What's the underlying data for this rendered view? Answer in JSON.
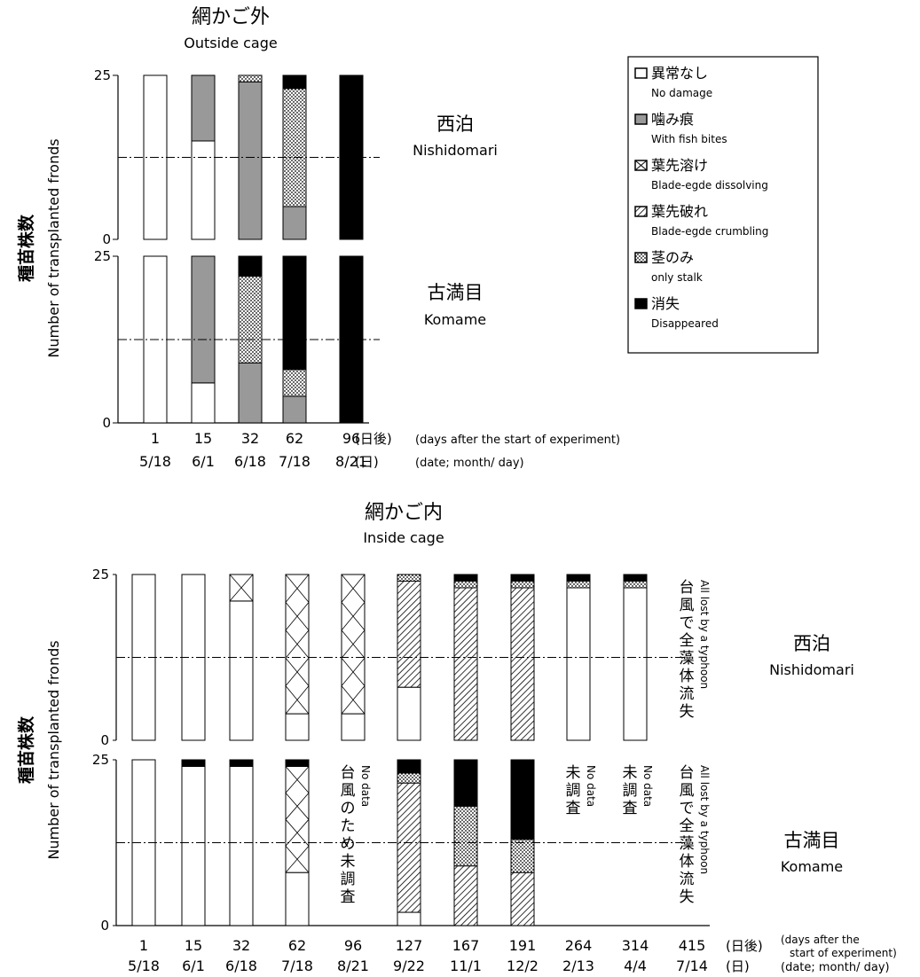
{
  "top_title": {
    "ja": "網かご外",
    "en": "Outside cage"
  },
  "bottom_title": {
    "ja": "網かご内",
    "en": "Inside cage"
  },
  "ylabel": {
    "ja": "種苗株数",
    "en": "Number of transplanted fronds"
  },
  "legend": [
    {
      "key": "no_damage",
      "ja": "異常なし",
      "en": "No damage"
    },
    {
      "key": "fish_bites",
      "ja": "噛み痕",
      "en": "With fish bites"
    },
    {
      "key": "dissolving",
      "ja": "葉先溶け",
      "en": "Blade-egde dissolving"
    },
    {
      "key": "crumbling",
      "ja": "葉先破れ",
      "en": "Blade-egde crumbling"
    },
    {
      "key": "only_stalk",
      "ja": "茎のみ",
      "en": "only stalk"
    },
    {
      "key": "disappeared",
      "ja": "消失",
      "en": "Disappeared"
    }
  ],
  "axis_suffix": {
    "days_ja": "(日後)",
    "date_ja": "(日)",
    "days_en": "(days after the start of experiment)",
    "days_en_l1": "(days after the",
    "days_en_l2": "start of experiment)",
    "date_en": "(date; month/ day)"
  },
  "chart_data": [
    {
      "type": "bar",
      "stacked": true,
      "title": "網かご外 Outside cage",
      "days": [
        "1",
        "15",
        "32",
        "62",
        "96"
      ],
      "dates": [
        "5/18",
        "6/1",
        "6/18",
        "7/18",
        "8/21"
      ],
      "ylim": [
        0,
        25
      ],
      "yticks": [
        0,
        25
      ],
      "reference_line": 12.5,
      "panels": [
        {
          "site_ja": "西泊",
          "site_en": "Nishidomari",
          "stacks": [
            [
              {
                "cat": "no_damage",
                "value": 25
              }
            ],
            [
              {
                "cat": "no_damage",
                "value": 15
              },
              {
                "cat": "fish_bites",
                "value": 10
              }
            ],
            [
              {
                "cat": "fish_bites",
                "value": 24
              },
              {
                "cat": "only_stalk",
                "value": 1
              }
            ],
            [
              {
                "cat": "fish_bites",
                "value": 5
              },
              {
                "cat": "only_stalk",
                "value": 18
              },
              {
                "cat": "disappeared",
                "value": 2
              }
            ],
            [
              {
                "cat": "disappeared",
                "value": 25
              }
            ]
          ]
        },
        {
          "site_ja": "古満目",
          "site_en": "Komame",
          "stacks": [
            [
              {
                "cat": "no_damage",
                "value": 25
              }
            ],
            [
              {
                "cat": "no_damage",
                "value": 6
              },
              {
                "cat": "fish_bites",
                "value": 19
              }
            ],
            [
              {
                "cat": "fish_bites",
                "value": 9
              },
              {
                "cat": "only_stalk",
                "value": 13
              },
              {
                "cat": "disappeared",
                "value": 3
              }
            ],
            [
              {
                "cat": "fish_bites",
                "value": 4
              },
              {
                "cat": "only_stalk",
                "value": 4
              },
              {
                "cat": "disappeared",
                "value": 17
              }
            ],
            [
              {
                "cat": "disappeared",
                "value": 25
              }
            ]
          ]
        }
      ]
    },
    {
      "type": "bar",
      "stacked": true,
      "title": "網かご内 Inside cage",
      "days": [
        "1",
        "15",
        "32",
        "62",
        "96",
        "127",
        "167",
        "191",
        "264",
        "314",
        "415"
      ],
      "dates": [
        "5/18",
        "6/1",
        "6/18",
        "7/18",
        "8/21",
        "9/22",
        "11/1",
        "12/2",
        "2/13",
        "4/4",
        "7/14"
      ],
      "ylim": [
        0,
        25
      ],
      "yticks": [
        0,
        25
      ],
      "reference_line": 12.5,
      "panels": [
        {
          "site_ja": "西泊",
          "site_en": "Nishidomari",
          "stacks": [
            [
              {
                "cat": "no_damage",
                "value": 25
              }
            ],
            [
              {
                "cat": "no_damage",
                "value": 25
              }
            ],
            [
              {
                "cat": "no_damage",
                "value": 21
              },
              {
                "cat": "dissolving",
                "value": 4
              }
            ],
            [
              {
                "cat": "no_damage",
                "value": 4
              },
              {
                "cat": "dissolving",
                "value": 21
              }
            ],
            [
              {
                "cat": "no_damage",
                "value": 4
              },
              {
                "cat": "dissolving",
                "value": 21
              }
            ],
            [
              {
                "cat": "no_damage",
                "value": 8
              },
              {
                "cat": "crumbling",
                "value": 16
              },
              {
                "cat": "only_stalk",
                "value": 1
              }
            ],
            [
              {
                "cat": "crumbling",
                "value": 23
              },
              {
                "cat": "only_stalk",
                "value": 1
              },
              {
                "cat": "disappeared",
                "value": 1
              }
            ],
            [
              {
                "cat": "crumbling",
                "value": 23
              },
              {
                "cat": "only_stalk",
                "value": 1
              },
              {
                "cat": "disappeared",
                "value": 1
              }
            ],
            [
              {
                "cat": "no_damage",
                "value": 23
              },
              {
                "cat": "only_stalk",
                "value": 1
              },
              {
                "cat": "disappeared",
                "value": 1
              }
            ],
            [
              {
                "cat": "no_damage",
                "value": 23
              },
              {
                "cat": "only_stalk",
                "value": 1
              },
              {
                "cat": "disappeared",
                "value": 1
              }
            ],
            []
          ],
          "notes": [
            {
              "index": 10,
              "ja": "台風で全藻体流失",
              "en": "All lost by a typhoon"
            }
          ]
        },
        {
          "site_ja": "古満目",
          "site_en": "Komame",
          "stacks": [
            [
              {
                "cat": "no_damage",
                "value": 25
              }
            ],
            [
              {
                "cat": "no_damage",
                "value": 24
              },
              {
                "cat": "disappeared",
                "value": 1
              }
            ],
            [
              {
                "cat": "no_damage",
                "value": 24
              },
              {
                "cat": "disappeared",
                "value": 1
              }
            ],
            [
              {
                "cat": "no_damage",
                "value": 8
              },
              {
                "cat": "dissolving",
                "value": 16
              },
              {
                "cat": "disappeared",
                "value": 1
              }
            ],
            [],
            [
              {
                "cat": "no_damage",
                "value": 2
              },
              {
                "cat": "crumbling",
                "value": 19.5
              },
              {
                "cat": "only_stalk",
                "value": 1.5
              },
              {
                "cat": "disappeared",
                "value": 2
              }
            ],
            [
              {
                "cat": "crumbling",
                "value": 9
              },
              {
                "cat": "only_stalk",
                "value": 9
              },
              {
                "cat": "disappeared",
                "value": 7
              }
            ],
            [
              {
                "cat": "crumbling",
                "value": 8
              },
              {
                "cat": "only_stalk",
                "value": 5
              },
              {
                "cat": "disappeared",
                "value": 12
              }
            ],
            [],
            [],
            []
          ],
          "notes": [
            {
              "index": 4,
              "ja": "台風のため未調査",
              "en": "No data"
            },
            {
              "index": 8,
              "ja": "未調査",
              "en": "No data"
            },
            {
              "index": 9,
              "ja": "未調査",
              "en": "No data"
            },
            {
              "index": 10,
              "ja": "台風で全藻体流失",
              "en": "All lost by a typhoon"
            }
          ]
        }
      ]
    }
  ]
}
